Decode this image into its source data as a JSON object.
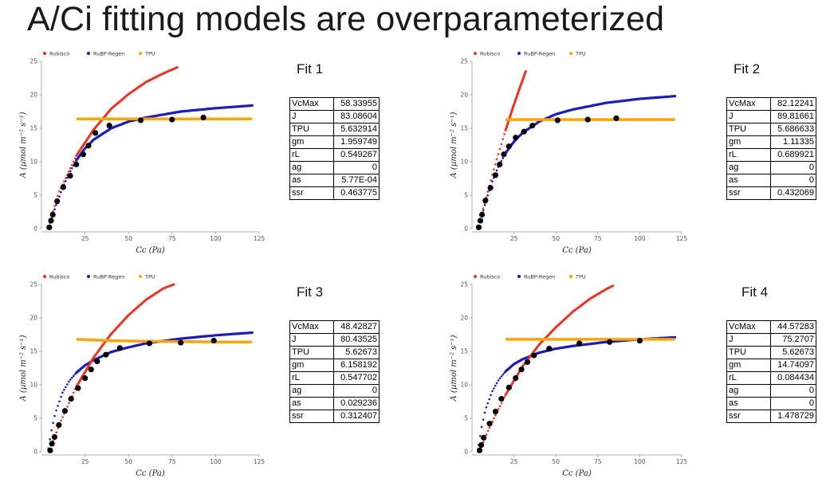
{
  "title": "A/Ci fitting models are overparameterized",
  "colors": {
    "rubisco": "#ee3322",
    "rubp": "#1a1acc",
    "tpu": "#ffa500",
    "obs": "#000000"
  },
  "chart_data": [
    {
      "type": "scatter",
      "fit_label": "Fit 1",
      "xlabel": "Cc (Pa)",
      "ylabel": "A (µmol m⁻² s⁻¹)",
      "xlim": [
        0,
        125
      ],
      "ylim": [
        0,
        25
      ],
      "xticks": [
        "25",
        "50",
        "75",
        "100",
        "125"
      ],
      "yticks": [
        "0",
        "5",
        "10",
        "15",
        "20",
        "25"
      ],
      "legend": [
        "Rubisco",
        "RuBP-Regen",
        "TPU"
      ],
      "params": [
        {
          "name": "VcMax",
          "value": "58.33955"
        },
        {
          "name": "J",
          "value": "83.08604"
        },
        {
          "name": "TPU",
          "value": "5.632914"
        },
        {
          "name": "gm",
          "value": "1.959749"
        },
        {
          "name": "rL",
          "value": "0.549267"
        },
        {
          "name": "ag",
          "value": "0"
        },
        {
          "name": "as",
          "value": "5.77E-04"
        },
        {
          "name": "ssr",
          "value": "0.463775"
        }
      ],
      "observed": {
        "x": [
          4.5,
          5.5,
          6.5,
          9,
          12.5,
          16.5,
          20,
          24,
          27,
          31,
          39,
          57,
          75,
          93
        ],
        "y": [
          0.2,
          1.2,
          2.1,
          4.1,
          6.2,
          7.9,
          9.6,
          11.1,
          12.4,
          14.3,
          15.4,
          16.2,
          16.3,
          16.6
        ]
      },
      "rubisco": {
        "x": [
          4,
          10,
          20,
          30,
          40,
          50,
          60,
          70,
          78
        ],
        "y": [
          0.4,
          5.4,
          10.9,
          14.8,
          17.9,
          20.1,
          21.9,
          23.2,
          24.1
        ]
      },
      "rubp": {
        "x": [
          4,
          8,
          12,
          16,
          20,
          25,
          30,
          40,
          50,
          60,
          80,
          100,
          121
        ],
        "y": [
          0.2,
          3.2,
          6.0,
          8.3,
          10.2,
          12.0,
          13.3,
          15.0,
          16.0,
          16.6,
          17.5,
          18.0,
          18.4
        ]
      },
      "tpu": {
        "x": [
          20,
          121
        ],
        "y": [
          16.4,
          16.4
        ]
      }
    },
    {
      "type": "scatter",
      "fit_label": "Fit 2",
      "xlabel": "Cc (Pa)",
      "ylabel": "A (µmol m⁻² s⁻¹)",
      "xlim": [
        0,
        125
      ],
      "ylim": [
        0,
        25
      ],
      "xticks": [
        "25",
        "50",
        "75",
        "100",
        "125"
      ],
      "yticks": [
        "0",
        "5",
        "10",
        "15",
        "20",
        "25"
      ],
      "legend": [
        "Rubisco",
        "RuBP-Regen",
        "TPU"
      ],
      "params": [
        {
          "name": "VcMax",
          "value": "82.12241"
        },
        {
          "name": "J",
          "value": "89.81661"
        },
        {
          "name": "TPU",
          "value": "5.686633"
        },
        {
          "name": "gm",
          "value": "1.11335"
        },
        {
          "name": "rL",
          "value": "0.689921"
        },
        {
          "name": "ag",
          "value": "0"
        },
        {
          "name": "as",
          "value": "0"
        },
        {
          "name": "ssr",
          "value": "0.432069"
        }
      ],
      "observed": {
        "x": [
          4,
          5,
          6,
          8,
          11,
          14,
          16.5,
          19,
          22,
          26,
          31,
          36,
          51,
          69,
          86
        ],
        "y": [
          0.2,
          1.2,
          2.1,
          4.2,
          6.1,
          8.0,
          9.6,
          11.1,
          12.3,
          13.6,
          14.5,
          15.4,
          16.2,
          16.3,
          16.5
        ]
      },
      "rubisco": {
        "x": [
          4,
          8,
          12,
          16,
          20,
          24,
          28,
          32
        ],
        "y": [
          0.5,
          4.2,
          8.0,
          11.4,
          14.7,
          17.8,
          20.7,
          23.5
        ]
      },
      "rubp": {
        "x": [
          4,
          8,
          12,
          16,
          20,
          25,
          30,
          40,
          50,
          60,
          80,
          100,
          121
        ],
        "y": [
          0.2,
          3.9,
          7.0,
          9.4,
          11.3,
          13.0,
          14.3,
          16.0,
          17.1,
          17.8,
          18.8,
          19.4,
          19.8
        ]
      },
      "tpu": {
        "x": [
          20,
          121
        ],
        "y": [
          16.3,
          16.3
        ]
      }
    },
    {
      "type": "scatter",
      "fit_label": "Fit 3",
      "xlabel": "Cc (Pa)",
      "ylabel": "A (µmol m⁻² s⁻¹)",
      "xlim": [
        0,
        125
      ],
      "ylim": [
        0,
        25
      ],
      "xticks": [
        "25",
        "50",
        "75",
        "100",
        "125"
      ],
      "yticks": [
        "0",
        "5",
        "10",
        "15",
        "20",
        "25"
      ],
      "legend": [
        "Rubisco",
        "RuBP-Regen",
        "TPU"
      ],
      "params": [
        {
          "name": "VcMax",
          "value": "48.42827"
        },
        {
          "name": "J",
          "value": "80.43525"
        },
        {
          "name": "TPU",
          "value": "5.62673"
        },
        {
          "name": "gm",
          "value": "6.158192"
        },
        {
          "name": "rL",
          "value": "0.547702"
        },
        {
          "name": "ag",
          "value": "0"
        },
        {
          "name": "as",
          "value": "0.029236"
        },
        {
          "name": "ssr",
          "value": "0.312407"
        }
      ],
      "observed": {
        "x": [
          5,
          6,
          7.5,
          10,
          13.5,
          17,
          21,
          25,
          28.5,
          32,
          37,
          45,
          62,
          80,
          99
        ],
        "y": [
          0.2,
          1.2,
          2.2,
          4.0,
          6.1,
          7.9,
          9.5,
          11.0,
          12.3,
          13.5,
          14.5,
          15.5,
          16.2,
          16.3,
          16.6
        ]
      },
      "rubisco": {
        "x": [
          5,
          10,
          20,
          30,
          40,
          50,
          60,
          70,
          76
        ],
        "y": [
          0.3,
          3.9,
          9.7,
          14.1,
          17.6,
          20.4,
          22.7,
          24.4,
          25.0
        ]
      },
      "rubp": {
        "x": [
          4,
          6,
          8,
          12,
          16,
          20,
          25,
          30,
          40,
          50,
          60,
          80,
          100,
          121
        ],
        "y": [
          0.5,
          3.5,
          5.8,
          8.8,
          10.6,
          11.8,
          12.9,
          13.7,
          14.9,
          15.6,
          16.2,
          16.9,
          17.4,
          17.8
        ]
      },
      "tpu": {
        "x": [
          20,
          40,
          60,
          80,
          100,
          121
        ],
        "y": [
          16.8,
          16.6,
          16.5,
          16.45,
          16.4,
          16.4
        ]
      }
    },
    {
      "type": "scatter",
      "fit_label": "Fit 4",
      "xlabel": "Cc (Pa)",
      "ylabel": "A (µmol m⁻² s⁻¹)",
      "xlim": [
        0,
        125
      ],
      "ylim": [
        0,
        25
      ],
      "xticks": [
        "25",
        "50",
        "75",
        "100",
        "125"
      ],
      "yticks": [
        "0",
        "5",
        "10",
        "15",
        "20",
        "25"
      ],
      "legend": [
        "Rubisco",
        "RuBP-Regen",
        "TPU"
      ],
      "params": [
        {
          "name": "VcMax",
          "value": "44.57283"
        },
        {
          "name": "J",
          "value": "75.2707"
        },
        {
          "name": "TPU",
          "value": "5.62673"
        },
        {
          "name": "gm",
          "value": "14.74097"
        },
        {
          "name": "rL",
          "value": "0.084434"
        },
        {
          "name": "ag",
          "value": "0"
        },
        {
          "name": "as",
          "value": "0"
        },
        {
          "name": "ssr",
          "value": "1.478729"
        }
      ],
      "observed": {
        "x": [
          4.5,
          5.5,
          7,
          10.5,
          14,
          17.5,
          22,
          26,
          29.5,
          33,
          37,
          46,
          64,
          82,
          100
        ],
        "y": [
          0.2,
          1.0,
          2.1,
          4.2,
          6.0,
          7.9,
          9.6,
          11.0,
          12.3,
          13.4,
          14.4,
          15.4,
          16.2,
          16.4,
          16.6
        ]
      },
      "rubisco": {
        "x": [
          5,
          10,
          20,
          30,
          40,
          50,
          60,
          70,
          80,
          84
        ],
        "y": [
          0.4,
          3.4,
          8.5,
          12.7,
          16.0,
          18.6,
          20.9,
          22.8,
          24.3,
          24.8
        ]
      },
      "rubp": {
        "x": [
          4,
          6,
          8,
          12,
          16,
          20,
          25,
          30,
          40,
          50,
          60,
          80,
          100,
          121
        ],
        "y": [
          1.0,
          4.0,
          6.3,
          9.0,
          10.8,
          12.0,
          13.1,
          13.8,
          14.8,
          15.4,
          15.8,
          16.4,
          16.8,
          17.1
        ]
      },
      "tpu": {
        "x": [
          20,
          121
        ],
        "y": [
          16.8,
          16.8
        ]
      }
    }
  ]
}
